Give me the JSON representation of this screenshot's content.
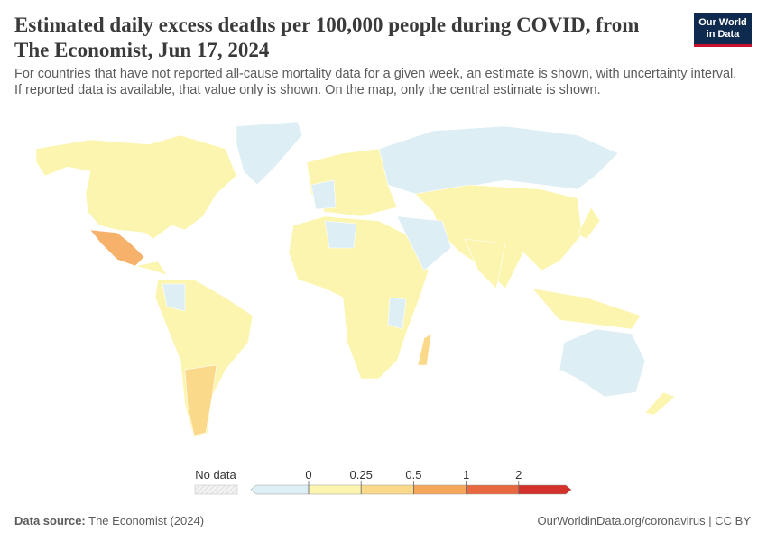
{
  "header": {
    "title": "Estimated daily excess deaths per 100,000 people during COVID, from The Economist, Jun 17, 2024",
    "subtitle": "For countries that have not reported all-cause mortality data for a given week, an estimate is shown, with uncertainty interval. If reported data is available, that value only is shown. On the map, only the central estimate is shown.",
    "logo": [
      "Our World",
      "in Data"
    ]
  },
  "legend": {
    "no_data": "No data",
    "ticks": [
      0,
      0.25,
      0.5,
      1,
      2
    ],
    "colors": [
      "#deeef5",
      "#fcf5b0",
      "#fbd98a",
      "#f6a65b",
      "#e8683f",
      "#d2322b"
    ]
  },
  "footer": {
    "source_label": "Data source:",
    "source": "The Economist (2024)",
    "link": "OurWorldinData.org/coronavirus | CC BY"
  }
}
